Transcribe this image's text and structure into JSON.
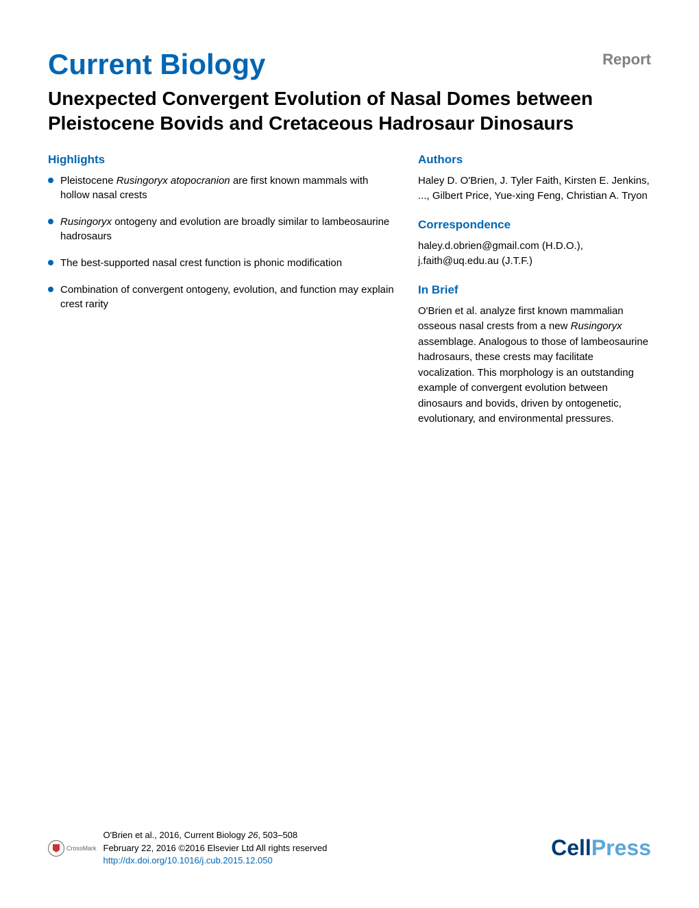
{
  "header": {
    "journal_name": "Current Biology",
    "report_label": "Report"
  },
  "article": {
    "title": "Unexpected Convergent Evolution of Nasal Domes between Pleistocene Bovids and Cretaceous Hadrosaur Dinosaurs"
  },
  "highlights": {
    "heading": "Highlights",
    "items": [
      {
        "pre": "Pleistocene ",
        "italic": "Rusingoryx atopocranion",
        "post": " are first known mammals with hollow nasal crests"
      },
      {
        "pre": "",
        "italic": "Rusingoryx",
        "post": " ontogeny and evolution are broadly similar to lambeosaurine hadrosaurs"
      },
      {
        "pre": "The best-supported nasal crest function is phonic modification",
        "italic": "",
        "post": ""
      },
      {
        "pre": "Combination of convergent ontogeny, evolution, and function may explain crest rarity",
        "italic": "",
        "post": ""
      }
    ]
  },
  "authors": {
    "heading": "Authors",
    "text": "Haley D. O'Brien, J. Tyler Faith, Kirsten E. Jenkins, ..., Gilbert Price, Yue-xing Feng, Christian A. Tryon"
  },
  "correspondence": {
    "heading": "Correspondence",
    "text": "haley.d.obrien@gmail.com (H.D.O.), j.faith@uq.edu.au (J.T.F.)"
  },
  "inbrief": {
    "heading": "In Brief",
    "pre": "O'Brien et al. analyze first known mammalian osseous nasal crests from a new ",
    "italic": "Rusingoryx",
    "post": " assemblage. Analogous to those of lambeosaurine hadrosaurs, these crests may facilitate vocalization. This morphology is an outstanding example of convergent evolution between dinosaurs and bovids, driven by ontogenetic, evolutionary, and environmental pressures."
  },
  "footer": {
    "crossmark_label": "CrossMark",
    "citation_line1_pre": "O'Brien et al., 2016, Current Biology ",
    "citation_line1_italic": "26",
    "citation_line1_post": ", 503–508",
    "citation_line2": "February 22, 2016 ©2016 Elsevier Ltd All rights reserved",
    "doi": "http://dx.doi.org/10.1016/j.cub.2015.12.050",
    "logo_cell": "Cell",
    "logo_press": "Press"
  },
  "colors": {
    "brand_blue": "#0066b3",
    "text_black": "#000000",
    "gray": "#808080",
    "cell_dark": "#003a70",
    "press_light": "#5aa8d8"
  },
  "typography": {
    "journal_fontsize": 42,
    "title_fontsize": 28,
    "heading_fontsize": 17,
    "body_fontsize": 15,
    "citation_fontsize": 13
  }
}
